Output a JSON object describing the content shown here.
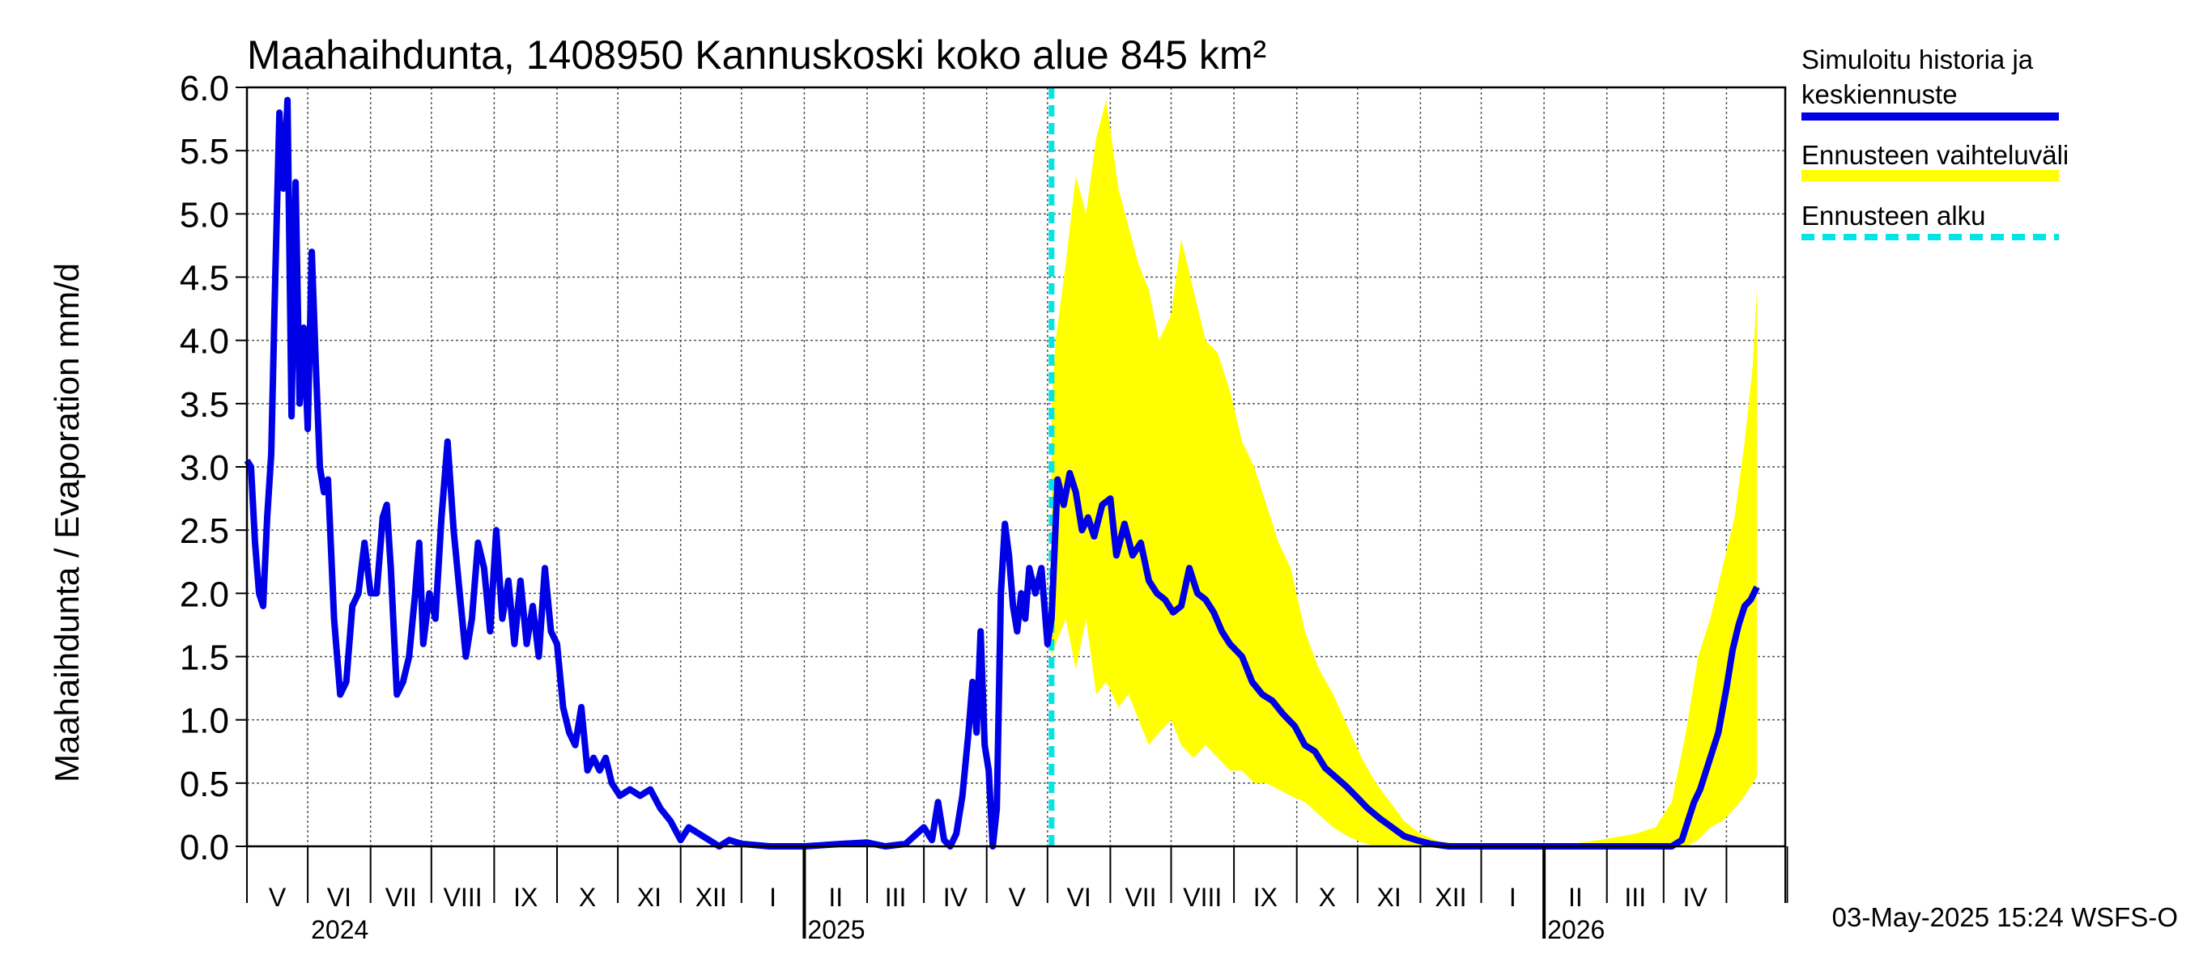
{
  "chart_data": {
    "type": "line",
    "title": "Maahaihdunta, 1408950 Kannuskoski koko alue 845 km²",
    "ylabel": "Maahaihdunta / Evaporation   mm/d",
    "xlabel": "",
    "ylim": [
      0,
      6
    ],
    "yticks": [
      "0.0",
      "0.5",
      "1.0",
      "1.5",
      "2.0",
      "2.5",
      "3.0",
      "3.5",
      "4.0",
      "4.5",
      "5.0",
      "5.5",
      "6.0"
    ],
    "xlim": [
      "2024-04-01",
      "2026-04-30"
    ],
    "month_labels": [
      "V",
      "VI",
      "VII",
      "VIII",
      "IX",
      "X",
      "XI",
      "XII",
      "I",
      "II",
      "III",
      "IV",
      "V",
      "VI",
      "VII",
      "VIII",
      "IX",
      "X",
      "XI",
      "XII",
      "I",
      "II",
      "III",
      "IV"
    ],
    "year_labels": [
      "2024",
      "2025",
      "2026"
    ],
    "forecast_start": "2025-05-03",
    "grid": true,
    "legend_position": "right",
    "legend": [
      {
        "label": "Simuloitu historia ja keskiennuste",
        "color": "#0000e6",
        "style": "solid"
      },
      {
        "label": "Ennusteen vaihteluväli",
        "color": "#ffff00",
        "style": "band"
      },
      {
        "label": "Ennusteen alku",
        "color": "#00e5e5",
        "style": "dashed"
      }
    ],
    "footer": "03-May-2025 15:24 WSFS-O",
    "series": [
      {
        "name": "Simuloitu historia ja keskiennuste",
        "color": "#0000e6",
        "points": [
          [
            "2024-04-01",
            3.05
          ],
          [
            "2024-04-03",
            3.0
          ],
          [
            "2024-04-05",
            2.4
          ],
          [
            "2024-04-07",
            2.0
          ],
          [
            "2024-04-09",
            1.9
          ],
          [
            "2024-04-11",
            2.6
          ],
          [
            "2024-04-13",
            3.1
          ],
          [
            "2024-04-15",
            4.5
          ],
          [
            "2024-04-17",
            5.8
          ],
          [
            "2024-04-19",
            5.2
          ],
          [
            "2024-04-21",
            5.9
          ],
          [
            "2024-04-23",
            3.4
          ],
          [
            "2024-04-25",
            5.25
          ],
          [
            "2024-04-27",
            3.5
          ],
          [
            "2024-04-29",
            4.1
          ],
          [
            "2024-05-01",
            3.3
          ],
          [
            "2024-05-03",
            4.7
          ],
          [
            "2024-05-05",
            3.8
          ],
          [
            "2024-05-07",
            3.0
          ],
          [
            "2024-05-09",
            2.8
          ],
          [
            "2024-05-11",
            2.9
          ],
          [
            "2024-05-14",
            1.8
          ],
          [
            "2024-05-17",
            1.2
          ],
          [
            "2024-05-20",
            1.3
          ],
          [
            "2024-05-23",
            1.9
          ],
          [
            "2024-05-26",
            2.0
          ],
          [
            "2024-05-29",
            2.4
          ],
          [
            "2024-06-01",
            2.0
          ],
          [
            "2024-06-04",
            2.0
          ],
          [
            "2024-06-07",
            2.6
          ],
          [
            "2024-06-09",
            2.7
          ],
          [
            "2024-06-11",
            2.2
          ],
          [
            "2024-06-14",
            1.2
          ],
          [
            "2024-06-17",
            1.3
          ],
          [
            "2024-06-20",
            1.5
          ],
          [
            "2024-06-23",
            2.0
          ],
          [
            "2024-06-25",
            2.4
          ],
          [
            "2024-06-27",
            1.6
          ],
          [
            "2024-06-30",
            2.0
          ],
          [
            "2024-07-03",
            1.8
          ],
          [
            "2024-07-06",
            2.6
          ],
          [
            "2024-07-09",
            3.2
          ],
          [
            "2024-07-12",
            2.5
          ],
          [
            "2024-07-15",
            2.0
          ],
          [
            "2024-07-18",
            1.5
          ],
          [
            "2024-07-21",
            1.8
          ],
          [
            "2024-07-24",
            2.4
          ],
          [
            "2024-07-27",
            2.2
          ],
          [
            "2024-07-30",
            1.7
          ],
          [
            "2024-08-02",
            2.5
          ],
          [
            "2024-08-05",
            1.8
          ],
          [
            "2024-08-08",
            2.1
          ],
          [
            "2024-08-11",
            1.6
          ],
          [
            "2024-08-14",
            2.1
          ],
          [
            "2024-08-17",
            1.6
          ],
          [
            "2024-08-20",
            1.9
          ],
          [
            "2024-08-23",
            1.5
          ],
          [
            "2024-08-26",
            2.2
          ],
          [
            "2024-08-29",
            1.7
          ],
          [
            "2024-09-01",
            1.6
          ],
          [
            "2024-09-04",
            1.1
          ],
          [
            "2024-09-07",
            0.9
          ],
          [
            "2024-09-10",
            0.8
          ],
          [
            "2024-09-13",
            1.1
          ],
          [
            "2024-09-16",
            0.6
          ],
          [
            "2024-09-19",
            0.7
          ],
          [
            "2024-09-22",
            0.6
          ],
          [
            "2024-09-25",
            0.7
          ],
          [
            "2024-09-28",
            0.5
          ],
          [
            "2024-10-02",
            0.4
          ],
          [
            "2024-10-07",
            0.45
          ],
          [
            "2024-10-12",
            0.4
          ],
          [
            "2024-10-17",
            0.45
          ],
          [
            "2024-10-22",
            0.3
          ],
          [
            "2024-10-27",
            0.2
          ],
          [
            "2024-11-01",
            0.05
          ],
          [
            "2024-11-05",
            0.15
          ],
          [
            "2024-11-10",
            0.1
          ],
          [
            "2024-11-15",
            0.05
          ],
          [
            "2024-11-20",
            0.0
          ],
          [
            "2024-11-25",
            0.05
          ],
          [
            "2024-12-01",
            0.02
          ],
          [
            "2024-12-15",
            0.0
          ],
          [
            "2025-01-01",
            0.0
          ],
          [
            "2025-01-20",
            0.02
          ],
          [
            "2025-02-01",
            0.03
          ],
          [
            "2025-02-10",
            0.0
          ],
          [
            "2025-02-20",
            0.02
          ],
          [
            "2025-03-01",
            0.15
          ],
          [
            "2025-03-05",
            0.05
          ],
          [
            "2025-03-08",
            0.35
          ],
          [
            "2025-03-11",
            0.05
          ],
          [
            "2025-03-14",
            0.0
          ],
          [
            "2025-03-17",
            0.1
          ],
          [
            "2025-03-20",
            0.4
          ],
          [
            "2025-03-23",
            0.9
          ],
          [
            "2025-03-25",
            1.3
          ],
          [
            "2025-03-27",
            0.9
          ],
          [
            "2025-03-29",
            1.7
          ],
          [
            "2025-03-31",
            0.8
          ],
          [
            "2025-04-02",
            0.6
          ],
          [
            "2025-04-04",
            0.0
          ],
          [
            "2025-04-06",
            0.3
          ],
          [
            "2025-04-08",
            2.0
          ],
          [
            "2025-04-10",
            2.55
          ],
          [
            "2025-04-12",
            2.3
          ],
          [
            "2025-04-14",
            1.9
          ],
          [
            "2025-04-16",
            1.7
          ],
          [
            "2025-04-18",
            2.0
          ],
          [
            "2025-04-20",
            1.8
          ],
          [
            "2025-04-22",
            2.2
          ],
          [
            "2025-04-25",
            2.0
          ],
          [
            "2025-04-28",
            2.2
          ],
          [
            "2025-05-01",
            1.6
          ],
          [
            "2025-05-03",
            1.8
          ],
          [
            "2025-05-06",
            2.9
          ],
          [
            "2025-05-09",
            2.7
          ],
          [
            "2025-05-12",
            2.95
          ],
          [
            "2025-05-15",
            2.8
          ],
          [
            "2025-05-18",
            2.5
          ],
          [
            "2025-05-21",
            2.6
          ],
          [
            "2025-05-24",
            2.45
          ],
          [
            "2025-05-28",
            2.7
          ],
          [
            "2025-06-01",
            2.75
          ],
          [
            "2025-06-04",
            2.3
          ],
          [
            "2025-06-08",
            2.55
          ],
          [
            "2025-06-12",
            2.3
          ],
          [
            "2025-06-16",
            2.4
          ],
          [
            "2025-06-20",
            2.1
          ],
          [
            "2025-06-24",
            2.0
          ],
          [
            "2025-06-28",
            1.95
          ],
          [
            "2025-07-02",
            1.85
          ],
          [
            "2025-07-06",
            1.9
          ],
          [
            "2025-07-10",
            2.2
          ],
          [
            "2025-07-14",
            2.0
          ],
          [
            "2025-07-18",
            1.95
          ],
          [
            "2025-07-22",
            1.85
          ],
          [
            "2025-07-26",
            1.7
          ],
          [
            "2025-07-30",
            1.6
          ],
          [
            "2025-08-05",
            1.5
          ],
          [
            "2025-08-10",
            1.3
          ],
          [
            "2025-08-15",
            1.2
          ],
          [
            "2025-08-20",
            1.15
          ],
          [
            "2025-08-25",
            1.05
          ],
          [
            "2025-08-31",
            0.95
          ],
          [
            "2025-09-05",
            0.8
          ],
          [
            "2025-09-10",
            0.75
          ],
          [
            "2025-09-15",
            0.62
          ],
          [
            "2025-09-20",
            0.55
          ],
          [
            "2025-09-25",
            0.48
          ],
          [
            "2025-09-30",
            0.4
          ],
          [
            "2025-10-06",
            0.3
          ],
          [
            "2025-10-12",
            0.22
          ],
          [
            "2025-10-18",
            0.15
          ],
          [
            "2025-10-24",
            0.08
          ],
          [
            "2025-10-30",
            0.05
          ],
          [
            "2025-11-06",
            0.02
          ],
          [
            "2025-11-15",
            0.0
          ],
          [
            "2025-12-15",
            0.0
          ],
          [
            "2026-01-15",
            0.0
          ],
          [
            "2026-02-15",
            0.0
          ],
          [
            "2026-03-05",
            0.0
          ],
          [
            "2026-03-10",
            0.05
          ],
          [
            "2026-03-13",
            0.2
          ],
          [
            "2026-03-16",
            0.35
          ],
          [
            "2026-03-19",
            0.45
          ],
          [
            "2026-03-22",
            0.6
          ],
          [
            "2026-03-25",
            0.75
          ],
          [
            "2026-03-28",
            0.9
          ],
          [
            "2026-04-01",
            1.25
          ],
          [
            "2026-04-04",
            1.55
          ],
          [
            "2026-04-07",
            1.75
          ],
          [
            "2026-04-10",
            1.9
          ],
          [
            "2026-04-13",
            1.95
          ],
          [
            "2026-04-16",
            2.05
          ]
        ]
      },
      {
        "name": "Ennusteen vaihteluväli",
        "color": "#ffff00",
        "band": [
          [
            "2025-05-03",
            1.5,
            3.5
          ],
          [
            "2025-05-05",
            1.6,
            4.0
          ],
          [
            "2025-05-10",
            1.8,
            4.6
          ],
          [
            "2025-05-15",
            1.4,
            5.3
          ],
          [
            "2025-05-20",
            1.8,
            5.0
          ],
          [
            "2025-05-25",
            1.2,
            5.6
          ],
          [
            "2025-05-30",
            1.3,
            5.9
          ],
          [
            "2025-06-05",
            1.1,
            5.2
          ],
          [
            "2025-06-10",
            1.2,
            4.9
          ],
          [
            "2025-06-15",
            1.0,
            4.6
          ],
          [
            "2025-06-20",
            0.8,
            4.4
          ],
          [
            "2025-06-25",
            0.9,
            4.0
          ],
          [
            "2025-07-01",
            1.0,
            4.2
          ],
          [
            "2025-07-06",
            0.8,
            4.8
          ],
          [
            "2025-07-12",
            0.7,
            4.4
          ],
          [
            "2025-07-18",
            0.8,
            4.0
          ],
          [
            "2025-07-24",
            0.7,
            3.9
          ],
          [
            "2025-07-30",
            0.6,
            3.6
          ],
          [
            "2025-08-05",
            0.6,
            3.2
          ],
          [
            "2025-08-11",
            0.5,
            3.0
          ],
          [
            "2025-08-17",
            0.5,
            2.7
          ],
          [
            "2025-08-23",
            0.45,
            2.4
          ],
          [
            "2025-08-29",
            0.4,
            2.2
          ],
          [
            "2025-09-05",
            0.35,
            1.7
          ],
          [
            "2025-09-12",
            0.25,
            1.4
          ],
          [
            "2025-09-19",
            0.15,
            1.2
          ],
          [
            "2025-09-26",
            0.08,
            0.95
          ],
          [
            "2025-10-03",
            0.03,
            0.7
          ],
          [
            "2025-10-10",
            0.0,
            0.5
          ],
          [
            "2025-10-17",
            0.0,
            0.35
          ],
          [
            "2025-10-24",
            0.0,
            0.2
          ],
          [
            "2025-11-01",
            0.0,
            0.1
          ],
          [
            "2025-11-10",
            0.0,
            0.04
          ],
          [
            "2025-11-20",
            0.0,
            0.02
          ],
          [
            "2025-12-15",
            0.0,
            0.01
          ],
          [
            "2026-01-15",
            0.0,
            0.02
          ],
          [
            "2026-02-01",
            0.0,
            0.06
          ],
          [
            "2026-02-15",
            0.0,
            0.1
          ],
          [
            "2026-02-25",
            0.0,
            0.15
          ],
          [
            "2026-03-05",
            0.0,
            0.35
          ],
          [
            "2026-03-12",
            0.0,
            0.9
          ],
          [
            "2026-03-18",
            0.05,
            1.5
          ],
          [
            "2026-03-24",
            0.15,
            1.8
          ],
          [
            "2026-03-30",
            0.2,
            2.2
          ],
          [
            "2026-04-05",
            0.3,
            2.6
          ],
          [
            "2026-04-10",
            0.4,
            3.2
          ],
          [
            "2026-04-14",
            0.5,
            3.8
          ],
          [
            "2026-04-16",
            0.55,
            4.4
          ]
        ]
      }
    ]
  }
}
